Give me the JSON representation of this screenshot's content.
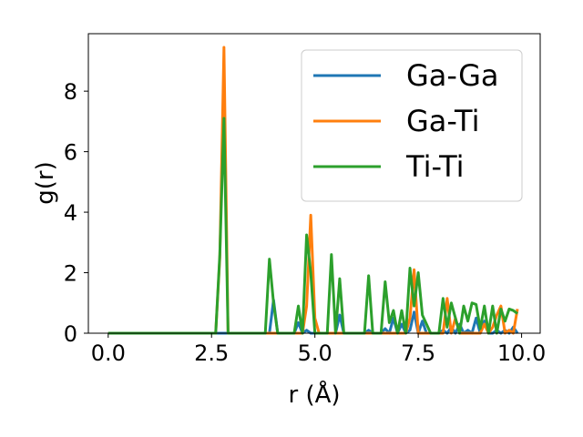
{
  "chart_data": {
    "type": "line",
    "xlabel": "r (Å)",
    "ylabel": "g(r)",
    "xlim": [
      -0.48,
      10.45
    ],
    "ylim": [
      0,
      9.9
    ],
    "xticks": [
      0,
      2.5,
      5,
      7.5,
      10
    ],
    "xtick_labels": [
      "0.0",
      "2.5",
      "5.0",
      "7.5",
      "10.0"
    ],
    "yticks": [
      0,
      2,
      4,
      6,
      8
    ],
    "ytick_labels": [
      "0",
      "2",
      "4",
      "6",
      "8"
    ],
    "grid": false,
    "legend_position": "top-right",
    "series": [
      {
        "name": "Ga-Ga",
        "color": "#1f77b4",
        "x": [
          0,
          2.6,
          2.7,
          2.8,
          2.9,
          3.0,
          3.8,
          3.9,
          4.0,
          4.1,
          4.5,
          4.6,
          4.7,
          4.8,
          4.9,
          5.0,
          5.1,
          5.3,
          5.4,
          5.5,
          5.6,
          5.7,
          6.2,
          6.3,
          6.4,
          6.6,
          6.7,
          6.8,
          6.9,
          7.0,
          7.1,
          7.2,
          7.3,
          7.4,
          7.5,
          7.6,
          7.7,
          7.8,
          8.0,
          8.1,
          8.2,
          8.3,
          8.4,
          8.5,
          8.6,
          8.7,
          8.8,
          8.9,
          9.0,
          9.1,
          9.2,
          9.3,
          9.4,
          9.5,
          9.6,
          9.7,
          9.8,
          9.9
        ],
        "values": [
          0,
          0,
          0,
          0,
          0,
          0,
          0,
          0,
          1.1,
          0,
          0,
          0.35,
          0,
          0.1,
          0,
          0,
          0,
          0,
          0,
          0,
          0.6,
          0,
          0,
          0.1,
          0,
          0,
          0.15,
          0,
          0.5,
          0,
          0.3,
          0,
          0.1,
          0.7,
          0,
          0.4,
          0,
          0,
          0,
          0.1,
          0,
          0.2,
          0,
          0.3,
          0,
          0.1,
          0,
          0.5,
          0,
          0.4,
          0,
          0,
          0.1,
          0,
          0.1,
          0,
          0.2,
          0
        ]
      },
      {
        "name": "Ga-Ti",
        "color": "#ff7f0e",
        "x": [
          0,
          2.6,
          2.7,
          2.8,
          2.9,
          3.0,
          4.5,
          4.6,
          4.7,
          4.8,
          4.9,
          5.0,
          5.1,
          5.3,
          5.4,
          5.5,
          5.6,
          5.7,
          6.2,
          6.3,
          6.4,
          6.6,
          6.7,
          6.8,
          6.9,
          7.0,
          7.1,
          7.2,
          7.3,
          7.4,
          7.5,
          7.6,
          7.7,
          7.8,
          8.0,
          8.1,
          8.2,
          8.3,
          8.4,
          8.5,
          8.6,
          8.7,
          8.8,
          8.9,
          9.0,
          9.1,
          9.2,
          9.3,
          9.4,
          9.5,
          9.6,
          9.7,
          9.8,
          9.9
        ],
        "values": [
          0,
          0,
          2.5,
          9.45,
          0,
          0,
          0,
          0,
          0,
          0.9,
          3.9,
          0.5,
          0,
          0,
          0,
          0,
          0,
          0,
          0,
          0,
          0,
          0,
          0,
          0,
          0,
          0,
          0,
          0,
          0.5,
          2.1,
          0,
          0,
          0,
          0,
          0,
          0,
          1.15,
          0,
          0.5,
          0,
          0,
          0,
          0,
          0,
          0,
          0.3,
          0,
          0.2,
          0.6,
          0.9,
          0,
          0.1,
          0,
          0.8
        ]
      },
      {
        "name": "Ti-Ti",
        "color": "#2ca02c",
        "x": [
          0,
          2.6,
          2.7,
          2.8,
          2.9,
          3.0,
          3.8,
          3.9,
          4.0,
          4.1,
          4.5,
          4.6,
          4.7,
          4.8,
          4.9,
          5.0,
          5.3,
          5.4,
          5.5,
          5.6,
          5.7,
          6.2,
          6.3,
          6.4,
          6.6,
          6.7,
          6.8,
          6.9,
          7.0,
          7.1,
          7.2,
          7.3,
          7.4,
          7.5,
          7.6,
          7.7,
          7.8,
          8.0,
          8.1,
          8.2,
          8.3,
          8.4,
          8.5,
          8.6,
          8.7,
          8.8,
          8.9,
          9.0,
          9.1,
          9.2,
          9.3,
          9.4,
          9.5,
          9.6,
          9.7,
          9.8,
          9.9
        ],
        "values": [
          0,
          0,
          2.6,
          7.1,
          0,
          0,
          0,
          2.45,
          1.0,
          0,
          0,
          0.9,
          0,
          3.25,
          2.0,
          0,
          0,
          2.6,
          0,
          1.8,
          0,
          0,
          1.9,
          0,
          0,
          1.7,
          0.35,
          0.75,
          0,
          0.75,
          0,
          2.15,
          0.9,
          2.0,
          0.6,
          0.3,
          0,
          0,
          1.15,
          0.2,
          1.0,
          0.5,
          0,
          0.9,
          0.4,
          1.0,
          0.95,
          0.15,
          0.9,
          0,
          0.9,
          0,
          0.8,
          0.4,
          0.8,
          0.75,
          0.65
        ]
      }
    ]
  }
}
